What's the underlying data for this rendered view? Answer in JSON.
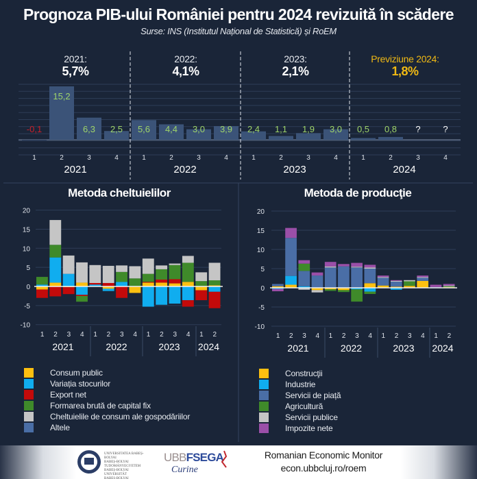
{
  "header": {
    "title": "Prognoza PIB-ului României pentru 2024 revizuită în scădere",
    "subtitle": "Surse: INS (Institutul Național de Statistică) și RoEM"
  },
  "annual": [
    {
      "label": "2021:",
      "value": "5,7%",
      "color": "#ffffff"
    },
    {
      "label": "2022:",
      "value": "4,1%",
      "color": "#ffffff"
    },
    {
      "label": "2023:",
      "value": "2,1%",
      "color": "#ffffff"
    },
    {
      "label": "Previziune 2024:",
      "value": "1,8%",
      "color": "#f0b914"
    }
  ],
  "colors": {
    "background": "#1a2538",
    "bar": "#3b5378",
    "positive_label": "#9fd46a",
    "negative_label": "#c8202a",
    "unknown_label": "#ffffff"
  },
  "chart_data": [
    {
      "type": "bar",
      "title": "",
      "years": [
        "2021",
        "2022",
        "2023",
        "2024"
      ],
      "quarters": [
        "1",
        "2",
        "3",
        "4"
      ],
      "values": [
        -0.1,
        15.2,
        6.3,
        2.5,
        5.6,
        4.4,
        3.0,
        3.9,
        2.4,
        1.1,
        1.9,
        3.0,
        0.5,
        0.8,
        null,
        null
      ],
      "labels": [
        "-0,1",
        "15,2",
        "6,3",
        "2,5",
        "5,6",
        "4,4",
        "3,0",
        "3,9",
        "2,4",
        "1,1",
        "1,9",
        "3,0",
        "0,5",
        "0,8",
        "?",
        "?"
      ],
      "grid": true
    },
    {
      "type": "bar",
      "stacked": true,
      "title": "Metoda cheltuielilor",
      "years": [
        "2021",
        "2022",
        "2023",
        "2024"
      ],
      "quarters": [
        "1",
        "2",
        "3",
        "4",
        "1",
        "2",
        "3",
        "4",
        "1",
        "2",
        "3",
        "4",
        "1",
        "2"
      ],
      "yticks": [
        "20",
        "15",
        "10",
        "5",
        "0",
        "-5",
        "-10"
      ],
      "ylim": [
        -10,
        20
      ],
      "grid": true,
      "series": [
        {
          "name": "Consum public",
          "color": "#fdc010",
          "values": [
            -0.8,
            1.0,
            -0.2,
            1.0,
            0,
            -0.6,
            0,
            -1.7,
            1.0,
            1.0,
            0.8,
            1.2,
            -1.0,
            0.3
          ]
        },
        {
          "name": "Variația stocurilor",
          "color": "#10adef",
          "values": [
            0.5,
            6.6,
            3.3,
            -2.2,
            0.5,
            -0.6,
            1.2,
            0,
            -5.3,
            -4.8,
            -4.5,
            -3.6,
            0,
            -1.4
          ]
        },
        {
          "name": "Export net",
          "color": "#c30a0a",
          "values": [
            -2.2,
            -2.6,
            -1.8,
            -0.3,
            0.4,
            0.9,
            -3.0,
            0,
            0.2,
            0.8,
            1.1,
            -1.7,
            -2.6,
            -4.3
          ]
        },
        {
          "name": "Formarea brută de capital fix",
          "color": "#3f8a2a",
          "values": [
            2.0,
            3.3,
            0,
            -1.5,
            0,
            0,
            2.6,
            2.1,
            2.1,
            2.7,
            3.7,
            5.0,
            1.4,
            1.3
          ]
        },
        {
          "name": "Cheltuielile de consum ale gospodăriilor",
          "color": "#c5c5c5",
          "values": [
            0,
            6.5,
            4.8,
            5.3,
            4.7,
            4.5,
            1.7,
            3.2,
            4.0,
            1.0,
            0.4,
            1.8,
            2.3,
            4.6
          ]
        },
        {
          "name": "Altele",
          "color": "#4a6ea6",
          "values": [
            0,
            0,
            0,
            0,
            0,
            0,
            0,
            0,
            0,
            0,
            0,
            0,
            0,
            0
          ]
        }
      ]
    },
    {
      "type": "bar",
      "stacked": true,
      "title": "Metoda de producţie",
      "years": [
        "2021",
        "2022",
        "2023",
        "2024"
      ],
      "quarters": [
        "1",
        "2",
        "3",
        "4",
        "1",
        "2",
        "3",
        "4",
        "1",
        "2",
        "3",
        "4",
        "1",
        "2"
      ],
      "yticks": [
        "20",
        "15",
        "10",
        "5",
        "0",
        "-5",
        "-10"
      ],
      "ylim": [
        -10,
        20
      ],
      "grid": true,
      "series": [
        {
          "name": "Construcţii",
          "color": "#fdc010",
          "values": [
            0.4,
            0.8,
            0,
            -0.6,
            -0.4,
            -0.6,
            0,
            1.2,
            0.6,
            0.3,
            0.5,
            1.8,
            0,
            0.2
          ]
        },
        {
          "name": "Industrie",
          "color": "#10adef",
          "values": [
            -0.3,
            2.3,
            0.4,
            0,
            0,
            0,
            -0.4,
            -1.0,
            0,
            -0.5,
            0,
            0,
            0,
            0
          ]
        },
        {
          "name": "Servicii de piață",
          "color": "#4a6ea6",
          "values": [
            0.6,
            9.9,
            4.0,
            3.2,
            5.3,
            5.6,
            5.3,
            3.8,
            2.0,
            1.3,
            0,
            0.8,
            0.2,
            0
          ]
        },
        {
          "name": "Agricultură",
          "color": "#3f8a2a",
          "values": [
            0,
            0,
            1.9,
            0,
            -0.4,
            -0.5,
            -3.2,
            -0.6,
            0,
            0,
            1.2,
            0,
            0,
            0.2
          ]
        },
        {
          "name": "Servicii publice",
          "color": "#c5c5c5",
          "values": [
            0,
            0,
            -0.5,
            -0.6,
            0.25,
            0,
            0.2,
            0.3,
            0.2,
            0.2,
            0.3,
            0.2,
            0,
            0.2
          ]
        },
        {
          "name": "Impozite nete",
          "color": "#9b4fa8",
          "values": [
            -0.6,
            2.6,
            0.9,
            0.8,
            1.2,
            0.6,
            1.0,
            0.7,
            0.4,
            0.2,
            0,
            0.4,
            0.6,
            0.4
          ]
        }
      ]
    }
  ],
  "footer": {
    "university_logo_text": "UNIVERSITATEA BABEȘ-BOLYAI",
    "faculty_logo_text": "UBBFSEGA",
    "monitor_name": "Romanian Economic Monitor",
    "url": "econ.ubbcluj.ro/roem"
  }
}
